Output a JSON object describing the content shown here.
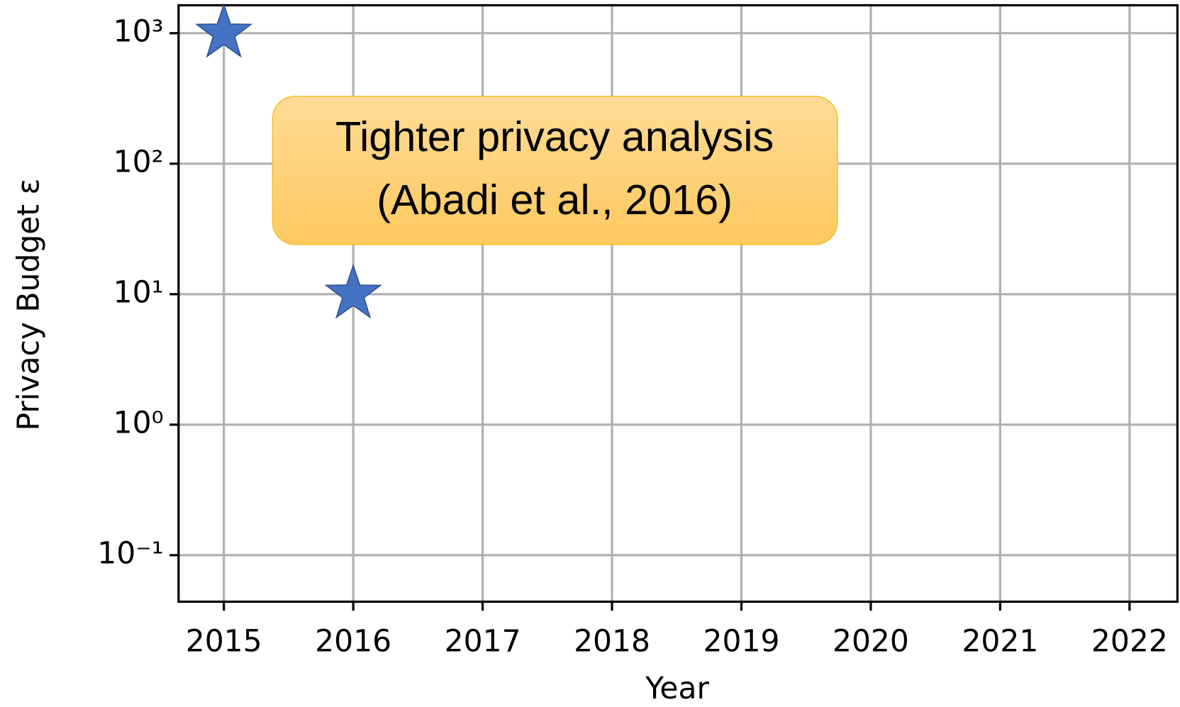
{
  "chart_data": {
    "type": "scatter",
    "x": [
      2015,
      2016
    ],
    "values": [
      1000,
      10
    ],
    "color": "#4472c4",
    "xlabel": "Year",
    "ylabel": "Privacy Budget ε",
    "xlim": [
      2014.65,
      2022.37
    ],
    "xticks": [
      2015,
      2016,
      2017,
      2018,
      2019,
      2020,
      2021,
      2022
    ],
    "ylim": [
      0.044,
      1637
    ],
    "log_y": true,
    "yticks": [
      {
        "value": 0.1,
        "label": "10⁻¹"
      },
      {
        "value": 1,
        "label": "10⁰"
      },
      {
        "value": 10,
        "label": "10¹"
      },
      {
        "value": 100,
        "label": "10²"
      },
      {
        "value": 1000,
        "label": "10³"
      }
    ],
    "grid": true,
    "annotation": [
      "Tighter privacy analysis",
      "(Abadi et al., 2016)"
    ]
  }
}
